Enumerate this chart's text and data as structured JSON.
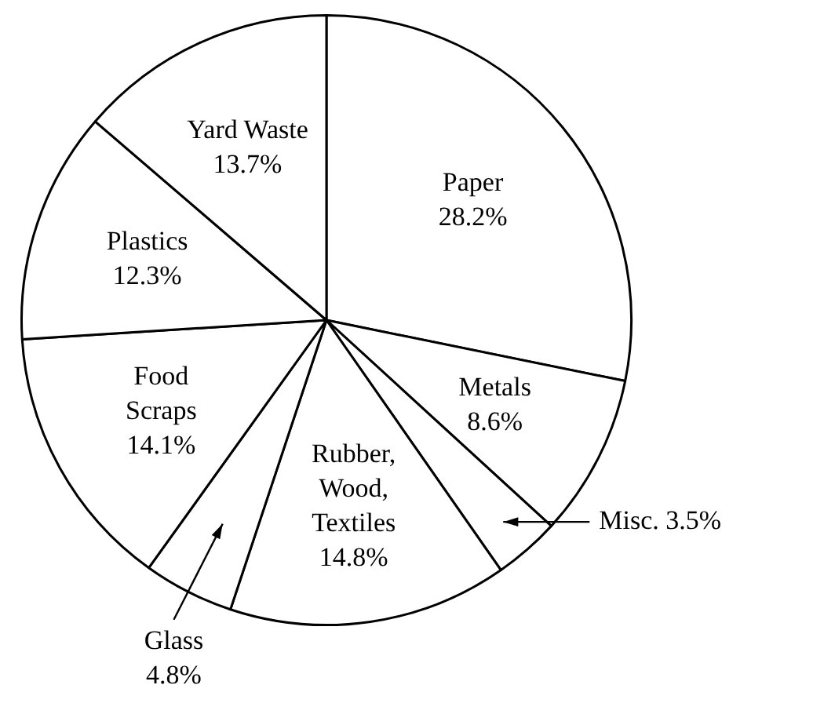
{
  "chart_data": {
    "type": "pie",
    "categories": [
      "Paper",
      "Metals",
      "Misc.",
      "Rubber, Wood, Textiles",
      "Glass",
      "Food Scraps",
      "Plastics",
      "Yard Waste"
    ],
    "values": [
      28.2,
      8.6,
      3.5,
      14.8,
      4.8,
      14.1,
      12.3,
      13.7
    ],
    "colors": [
      "#ffffff",
      "#ffffff",
      "#ffffff",
      "#ffffff",
      "#ffffff",
      "#ffffff",
      "#ffffff",
      "#ffffff"
    ],
    "value_labels": [
      "28.2%",
      "8.6%",
      "3.5%",
      "14.8%",
      "4.8%",
      "14.1%",
      "12.3%",
      "13.7%"
    ]
  }
}
